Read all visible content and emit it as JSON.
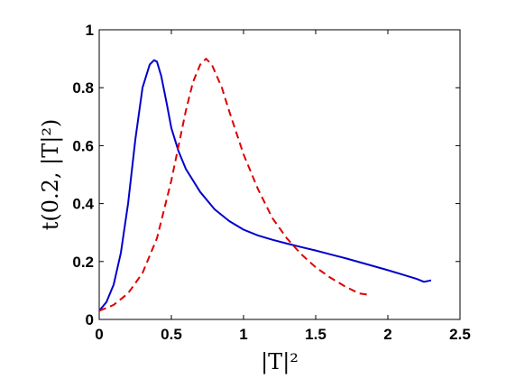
{
  "chart_data": {
    "type": "line",
    "xlabel": "|T|²",
    "ylabel": "t(0.2, |T|²)",
    "xlim": [
      0,
      2.5
    ],
    "ylim": [
      0,
      1
    ],
    "grid": false,
    "x_ticks": [
      "0",
      "0.5",
      "1",
      "1.5",
      "2",
      "2.5"
    ],
    "y_ticks": [
      "0",
      "0.2",
      "0.4",
      "0.6",
      "0.8",
      "1"
    ],
    "series": [
      {
        "style": "solid",
        "color": "#0000cc",
        "x": [
          0.0,
          0.05,
          0.1,
          0.15,
          0.2,
          0.25,
          0.3,
          0.35,
          0.38,
          0.4,
          0.43,
          0.47,
          0.5,
          0.55,
          0.6,
          0.7,
          0.8,
          0.9,
          1.0,
          1.1,
          1.2,
          1.3,
          1.4,
          1.5,
          1.6,
          1.7,
          1.8,
          1.9,
          2.0,
          2.1,
          2.2,
          2.25,
          2.3
        ],
        "y": [
          0.03,
          0.06,
          0.12,
          0.23,
          0.4,
          0.62,
          0.8,
          0.88,
          0.895,
          0.89,
          0.84,
          0.74,
          0.66,
          0.58,
          0.52,
          0.44,
          0.38,
          0.34,
          0.31,
          0.29,
          0.275,
          0.262,
          0.25,
          0.238,
          0.225,
          0.212,
          0.198,
          0.184,
          0.17,
          0.155,
          0.14,
          0.13,
          0.135
        ]
      },
      {
        "style": "dashed",
        "color": "#dd0000",
        "x": [
          0.0,
          0.1,
          0.2,
          0.3,
          0.4,
          0.5,
          0.6,
          0.65,
          0.7,
          0.74,
          0.78,
          0.85,
          0.9,
          1.0,
          1.1,
          1.2,
          1.3,
          1.4,
          1.5,
          1.6,
          1.7,
          1.8,
          1.87
        ],
        "y": [
          0.03,
          0.05,
          0.09,
          0.16,
          0.28,
          0.48,
          0.72,
          0.82,
          0.88,
          0.9,
          0.88,
          0.8,
          0.72,
          0.57,
          0.45,
          0.35,
          0.28,
          0.225,
          0.18,
          0.145,
          0.115,
          0.09,
          0.085
        ]
      }
    ]
  }
}
